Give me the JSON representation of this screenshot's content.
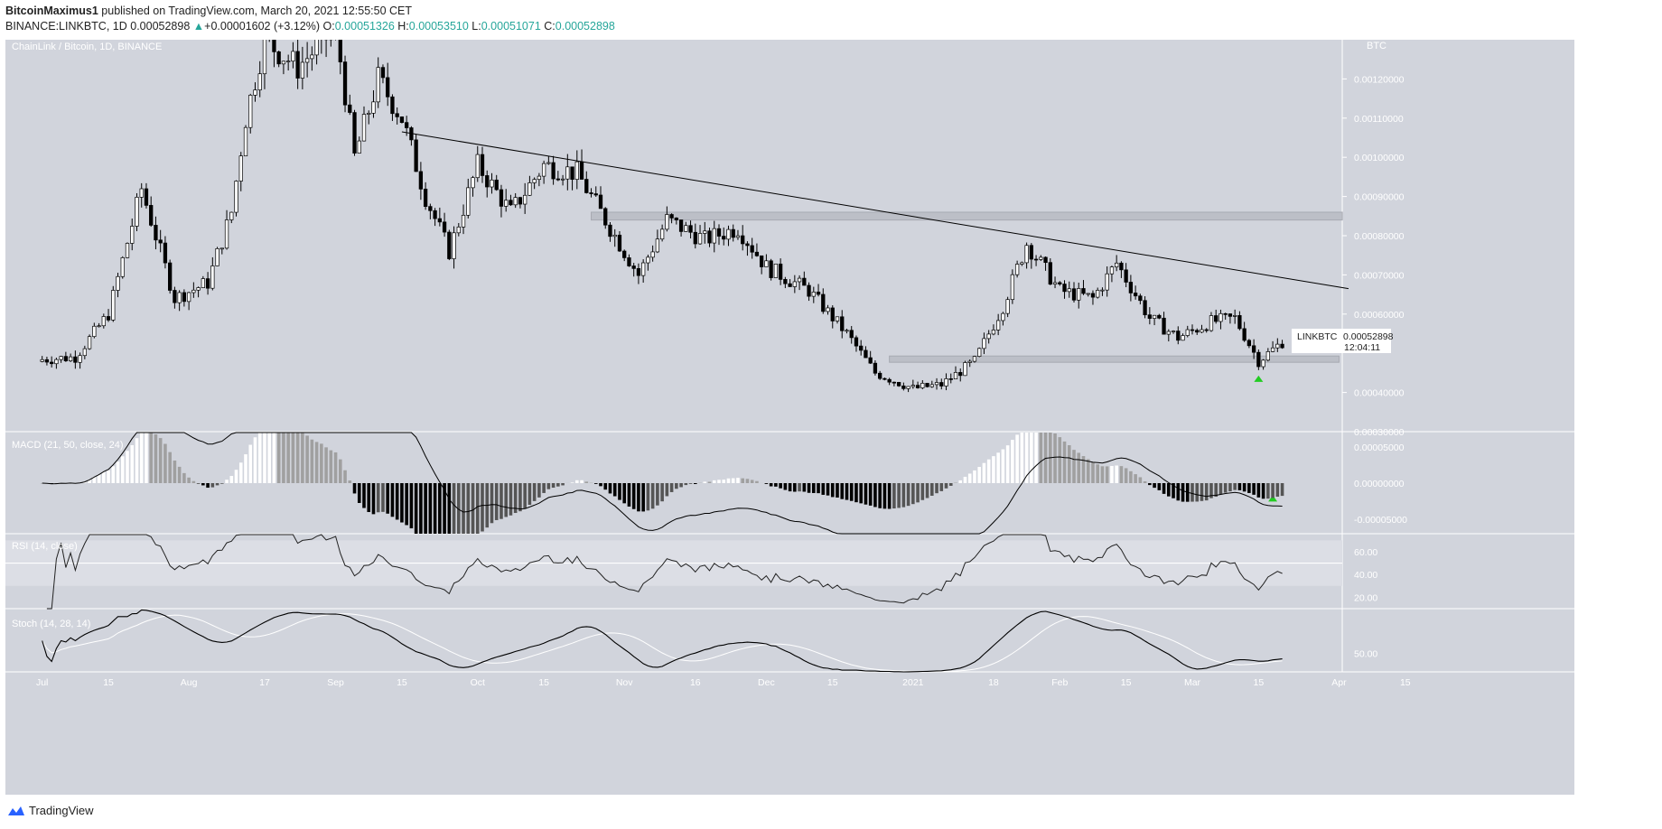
{
  "header": {
    "author": "BitcoinMaximus1",
    "published": " published on TradingView.com, March 20, 2021 12:55:50 CET",
    "symbol": "BINANCE:LINKBTC, 1D",
    "last": "0.00052898",
    "change": "+0.00001602 (+3.12%)",
    "o_label": "O:",
    "o": "0.00051326",
    "h_label": "H:",
    "h": "0.00053510",
    "l_label": "L:",
    "l": "0.00051071",
    "c_label": "C:",
    "c": "0.00052898"
  },
  "main_pane": {
    "legend": "ChainLink / Bitcoin, 1D, BINANCE",
    "currency": "BTC",
    "price_tag": "LINKBTC",
    "price_tag_value": "0.00052898",
    "countdown": "12:04:11"
  },
  "macd_pane": {
    "legend": "MACD (21, 50, close, 24)"
  },
  "rsi_pane": {
    "legend": "RSI (14, close)"
  },
  "stoch_pane": {
    "legend": "Stoch (14, 28, 14)"
  },
  "footer": {
    "brand": "TradingView"
  },
  "colors": {
    "up": "#ffffff",
    "down": "#000000",
    "pane_bg": "#d1d4dc",
    "grid": "#ffffff",
    "marker": "#22cc22"
  },
  "chart_data": {
    "type": "candlestick",
    "title": "ChainLink / Bitcoin, 1D, BINANCE",
    "y_unit": "BTC",
    "ylim": [
      0.0003,
      0.0013
    ],
    "price_ticks": [
      "0.00120000",
      "0.00110000",
      "0.00100000",
      "0.00090000",
      "0.00080000",
      "0.00070000",
      "0.00060000",
      "0.00040000",
      "0.00030000"
    ],
    "x_ticks": [
      "Jul",
      "15",
      "Aug",
      "17",
      "Sep",
      "15",
      "Oct",
      "15",
      "Nov",
      "16",
      "Dec",
      "15",
      "2021",
      "18",
      "Feb",
      "15",
      "Mar",
      "15",
      "Apr",
      "15"
    ],
    "close_path_approx": [
      [
        "2020-07-01",
        0.000484
      ],
      [
        "2020-07-08",
        0.00049
      ],
      [
        "2020-07-15",
        0.0006
      ],
      [
        "2020-07-22",
        0.00092
      ],
      [
        "2020-07-29",
        0.00064
      ],
      [
        "2020-08-05",
        0.00068
      ],
      [
        "2020-08-10",
        0.00086
      ],
      [
        "2020-08-13",
        0.0011
      ],
      [
        "2020-08-17",
        0.0013
      ],
      [
        "2020-08-24",
        0.00123
      ],
      [
        "2020-09-01",
        0.00133
      ],
      [
        "2020-09-05",
        0.001
      ],
      [
        "2020-09-10",
        0.0012
      ],
      [
        "2020-09-15",
        0.0011
      ],
      [
        "2020-09-20",
        0.0009
      ],
      [
        "2020-09-25",
        0.00076
      ],
      [
        "2020-10-01",
        0.00098
      ],
      [
        "2020-10-08",
        0.00086
      ],
      [
        "2020-10-15",
        0.00098
      ],
      [
        "2020-10-22",
        0.00096
      ],
      [
        "2020-10-28",
        0.00084
      ],
      [
        "2020-11-04",
        0.0007
      ],
      [
        "2020-11-10",
        0.00084
      ],
      [
        "2020-11-18",
        0.00079
      ],
      [
        "2020-11-25",
        0.00082
      ],
      [
        "2020-12-01",
        0.00072
      ],
      [
        "2020-12-10",
        0.00066
      ],
      [
        "2020-12-18",
        0.00055
      ],
      [
        "2020-12-24",
        0.00045
      ],
      [
        "2021-01-01",
        0.00041
      ],
      [
        "2021-01-07",
        0.00042
      ],
      [
        "2021-01-14",
        0.00048
      ],
      [
        "2021-01-20",
        0.00062
      ],
      [
        "2021-01-25",
        0.00078
      ],
      [
        "2021-02-01",
        0.00066
      ],
      [
        "2021-02-08",
        0.00064
      ],
      [
        "2021-02-13",
        0.00073
      ],
      [
        "2021-02-20",
        0.00059
      ],
      [
        "2021-02-26",
        0.00054
      ],
      [
        "2021-03-05",
        0.00058
      ],
      [
        "2021-03-10",
        0.00059
      ],
      [
        "2021-03-15",
        0.00048
      ],
      [
        "2021-03-20",
        0.00052898
      ]
    ],
    "resistance_line": [
      [
        "2020-09-15",
        0.001065
      ],
      [
        "2021-04-03",
        0.000665
      ]
    ],
    "zones": [
      {
        "name": "resistance-zone",
        "from": 0.00084,
        "to": 0.00086,
        "start": "2020-10-25",
        "end": "2021-05-06"
      },
      {
        "name": "support-zone",
        "from": 0.000477,
        "to": 0.000493,
        "start": "2020-12-27",
        "end": "2021-04-01"
      }
    ],
    "macd_ticks": [
      "0.00005000",
      "0.00000000",
      "-0.00005000"
    ],
    "rsi_ticks": [
      "60.00",
      "40.00",
      "20.00"
    ],
    "stoch_ticks": [
      "50.00"
    ]
  }
}
